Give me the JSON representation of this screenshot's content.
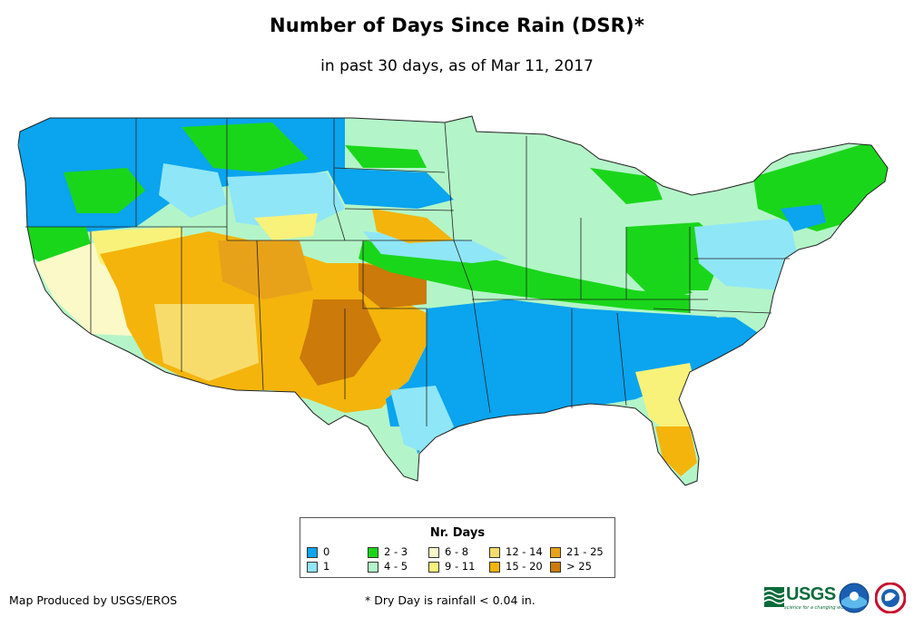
{
  "title": "Number of Days Since Rain (DSR)*",
  "subtitle": "in past 30 days, as of Mar 11, 2017",
  "legend": {
    "title": "Nr. Days",
    "items": [
      {
        "label": "0",
        "color": "#0aa4ef"
      },
      {
        "label": "1",
        "color": "#8fe6f7"
      },
      {
        "label": "2 - 3",
        "color": "#1ad61a"
      },
      {
        "label": "4 - 5",
        "color": "#b3f5c8"
      },
      {
        "label": "6 - 8",
        "color": "#fbf9c8"
      },
      {
        "label": "9 - 11",
        "color": "#f8f27a"
      },
      {
        "label": "12 - 14",
        "color": "#f8dc6b"
      },
      {
        "label": "15 - 20",
        "color": "#f4b40c"
      },
      {
        "label": "21 - 25",
        "color": "#e8a21a"
      },
      {
        "label": "> 25",
        "color": "#cc7a0a"
      }
    ]
  },
  "credit": "Map Produced by USGS/EROS",
  "footnote": "* Dry Day is rainfall < 0.04 in.",
  "logos": {
    "usgs": "USGS",
    "usgs_tagline": "science for a changing world"
  }
}
